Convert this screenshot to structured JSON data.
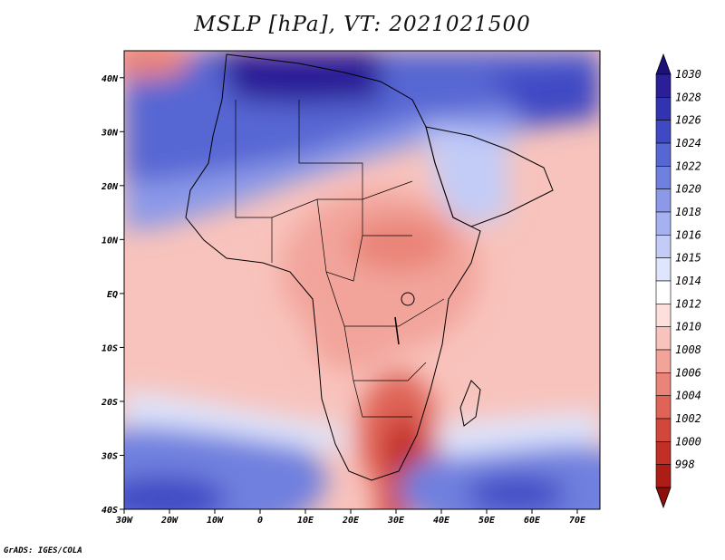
{
  "title": "MSLP [hPa], VT: 2021021500",
  "footer": "GrADS: IGES/COLA",
  "map": {
    "type": "filled-contour",
    "variable": "Mean sea level pressure",
    "units": "hPa",
    "valid_time": "2021021500",
    "lon_range": [
      -30,
      75
    ],
    "lat_range": [
      -40,
      45
    ],
    "lon_ticks": [
      "30W",
      "20W",
      "10W",
      "0",
      "10E",
      "20E",
      "30E",
      "40E",
      "50E",
      "60E",
      "70E"
    ],
    "lat_ticks": [
      "40N",
      "30N",
      "20N",
      "10N",
      "EQ",
      "10S",
      "20S",
      "30S",
      "40S"
    ]
  },
  "colorbar": {
    "levels": [
      "1030",
      "1028",
      "1026",
      "1024",
      "1022",
      "1020",
      "1018",
      "1016",
      "1015",
      "1014",
      "1012",
      "1010",
      "1008",
      "1006",
      "1004",
      "1002",
      "1000",
      "998"
    ],
    "colors": [
      "#2a1f97",
      "#3233b0",
      "#3f49c4",
      "#5666d3",
      "#6f80de",
      "#8b99e8",
      "#a6b2f0",
      "#c3ccf7",
      "#dfe5fc",
      "#ffffff",
      "#fde0dc",
      "#f8c3bc",
      "#f2a49b",
      "#ea8478",
      "#df6457",
      "#d2473b",
      "#c22f26",
      "#ae1c16"
    ],
    "tip_top": "#1c1179",
    "tip_bottom": "#8d0f0c"
  }
}
